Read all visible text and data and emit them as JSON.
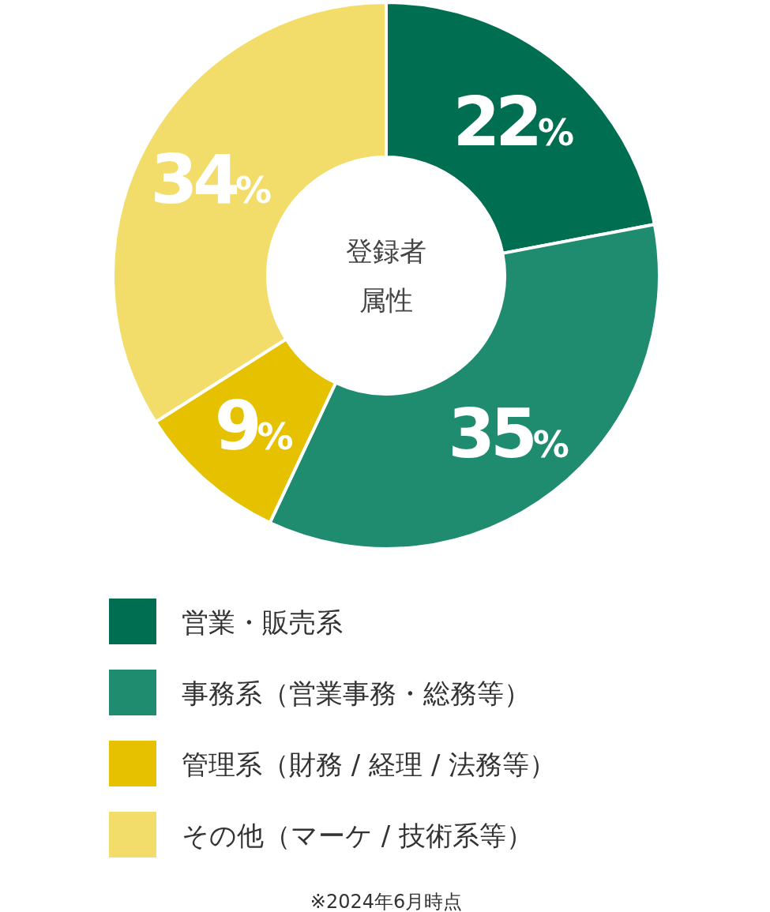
{
  "chart_data": {
    "type": "donut",
    "title": "登録者属性",
    "categories": [
      "営業・販売系",
      "事務系（営業事務・総務等）",
      "管理系（財務 / 経理 / 法務等）",
      "その他（マーケ / 技術系等）"
    ],
    "values": [
      22,
      35,
      9,
      34
    ],
    "colors": [
      "#006f51",
      "#1f8c70",
      "#e5c100",
      "#f2dd6a"
    ],
    "value_labels": [
      "22%",
      "35%",
      "9%",
      "34%"
    ],
    "legend": "bottom",
    "annotations": [
      "※2024年6月時点"
    ]
  }
}
